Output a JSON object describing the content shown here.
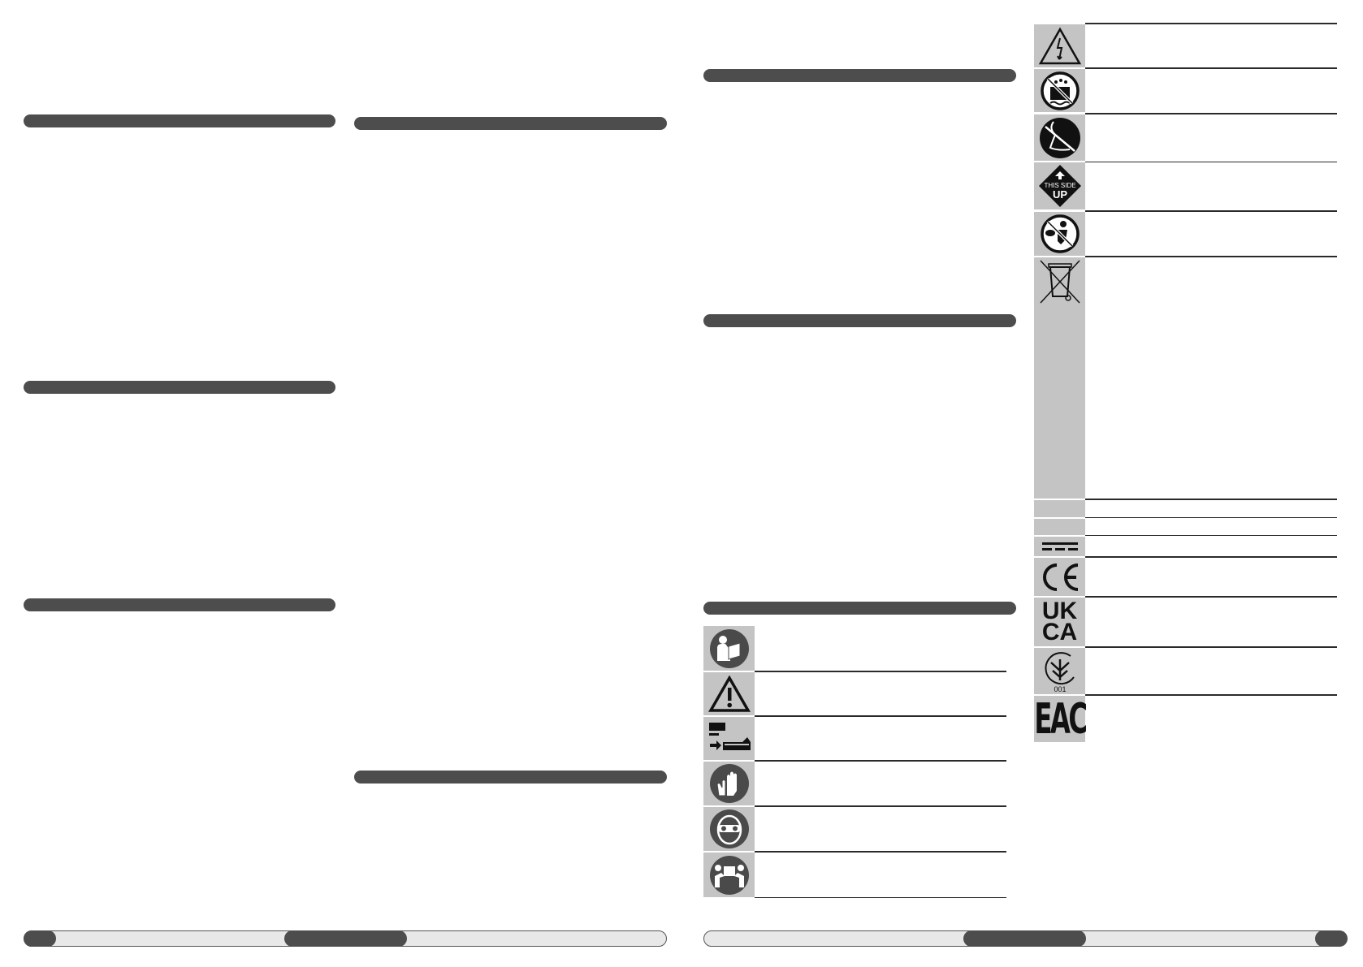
{
  "colors": {
    "section_bar": "#4d4d4d",
    "symbol_cell": "#c4c4c4",
    "footer_fill": "#e8e8e8"
  },
  "sections": [
    {
      "column": 1,
      "header": ""
    },
    {
      "column": 1,
      "header": ""
    },
    {
      "column": 1,
      "header": ""
    },
    {
      "column": 2,
      "header": ""
    },
    {
      "column": 2,
      "header": ""
    },
    {
      "column": 3,
      "header": ""
    },
    {
      "column": 3,
      "header": ""
    },
    {
      "column": 3,
      "header": ""
    }
  ],
  "symbols_left": [
    "read-manual-icon",
    "warning-icon",
    "remove-battery-icon",
    "gloves-icon",
    "safety-goggles-icon",
    "two-person-lift-icon"
  ],
  "symbols_right": [
    {
      "icon": "electric-hazard-icon"
    },
    {
      "icon": "no-water-icon"
    },
    {
      "icon": "no-wet-floor-icon"
    },
    {
      "icon": "this-side-up-icon",
      "logo_text_1": "THIS SIDE",
      "logo_text_2": "UP"
    },
    {
      "icon": "keep-from-children-icon"
    },
    {
      "icon": "weee-bin-icon"
    },
    {
      "icon": "blank"
    },
    {
      "icon": "blank"
    },
    {
      "icon": "direct-current-icon"
    },
    {
      "icon": "ce-mark-icon",
      "logo_text": "CE"
    },
    {
      "icon": "ukca-mark-icon",
      "logo_text_1": "UK",
      "logo_text_2": "CA"
    },
    {
      "icon": "ukrsepro-mark-icon",
      "logo_text": "001"
    },
    {
      "icon": "eac-mark-icon",
      "logo_text": "EAC"
    }
  ]
}
